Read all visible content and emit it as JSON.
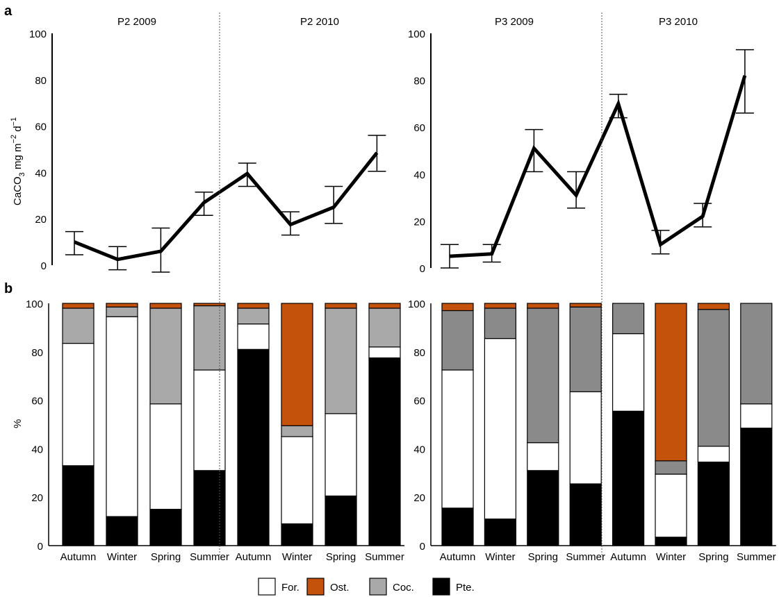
{
  "colors": {
    "for": "#ffffff",
    "ost": "#c5520b",
    "coc_p2": "#a9a9a9",
    "coc_p3": "#8a8a8a",
    "pte": "#000000"
  },
  "panels": {
    "a_label": "a",
    "b_label": "b"
  },
  "chart_data": [
    {
      "type": "line",
      "panel": "a-left",
      "ylabel": "CaCO3 mg m-2 d-1",
      "ylim": [
        0,
        100
      ],
      "yticks": [
        0,
        20,
        40,
        60,
        80,
        100
      ],
      "group_labels": [
        "P2 2009",
        "P2 2010"
      ],
      "points": [
        {
          "x": 0,
          "y": 10,
          "err_low": 4.5,
          "err_high": 14.5
        },
        {
          "x": 1,
          "y": 2.5,
          "err_low": -2,
          "err_high": 8
        },
        {
          "x": 2,
          "y": 6,
          "err_low": -3,
          "err_high": 16
        },
        {
          "x": 3,
          "y": 27,
          "err_low": 21.5,
          "err_high": 31.5
        },
        {
          "x": 4,
          "y": 39.5,
          "err_low": 34,
          "err_high": 44
        },
        {
          "x": 5,
          "y": 17.5,
          "err_low": 13,
          "err_high": 23
        },
        {
          "x": 6,
          "y": 25,
          "err_low": 18,
          "err_high": 34
        },
        {
          "x": 7,
          "y": 48.5,
          "err_low": 40.5,
          "err_high": 56
        }
      ]
    },
    {
      "type": "line",
      "panel": "a-right",
      "ylim": [
        0,
        100
      ],
      "yticks": [
        0,
        20,
        40,
        60,
        80,
        100
      ],
      "group_labels": [
        "P3 2009",
        "P3 2010"
      ],
      "points": [
        {
          "x": 0,
          "y": 5,
          "err_low": 0,
          "err_high": 10
        },
        {
          "x": 1,
          "y": 6,
          "err_low": 2.5,
          "err_high": 10
        },
        {
          "x": 2,
          "y": 51,
          "err_low": 41,
          "err_high": 59
        },
        {
          "x": 3,
          "y": 31,
          "err_low": 25.5,
          "err_high": 41
        },
        {
          "x": 4,
          "y": 70,
          "err_low": 64,
          "err_high": 74
        },
        {
          "x": 5,
          "y": 10,
          "err_low": 6,
          "err_high": 16
        },
        {
          "x": 6,
          "y": 22,
          "err_low": 17.5,
          "err_high": 27.5
        },
        {
          "x": 7,
          "y": 82,
          "err_low": 66,
          "err_high": 93
        }
      ]
    },
    {
      "type": "bar",
      "panel": "b-left",
      "stacked": true,
      "ylabel": "%",
      "ylim": [
        0,
        100
      ],
      "yticks": [
        0,
        20,
        40,
        60,
        80,
        100
      ],
      "categories": [
        "Autumn",
        "Winter",
        "Spring",
        "Summer",
        "Autumn",
        "Winter",
        "Spring",
        "Summer"
      ],
      "series": [
        {
          "name": "Pte.",
          "key": "pte",
          "values": [
            33,
            12,
            15,
            31,
            81,
            9,
            20.5,
            77.5
          ]
        },
        {
          "name": "For.",
          "key": "for",
          "values": [
            50.5,
            82.5,
            43.5,
            41.5,
            10.5,
            36,
            34,
            4.5
          ]
        },
        {
          "name": "Coc.",
          "key": "coc_p2",
          "values": [
            14.5,
            4,
            39.5,
            26.5,
            6.5,
            4.5,
            43.5,
            16
          ]
        },
        {
          "name": "Ost.",
          "key": "ost",
          "values": [
            2,
            1.5,
            2,
            1,
            2,
            50.5,
            2,
            2
          ]
        }
      ]
    },
    {
      "type": "bar",
      "panel": "b-right",
      "stacked": true,
      "ylim": [
        0,
        100
      ],
      "yticks": [
        0,
        20,
        40,
        60,
        80,
        100
      ],
      "categories": [
        "Autumn",
        "Winter",
        "Spring",
        "Summer",
        "Autumn",
        "Winter",
        "Spring",
        "Summer"
      ],
      "series": [
        {
          "name": "Pte.",
          "key": "pte",
          "values": [
            15.5,
            11,
            31,
            25.5,
            55.5,
            3.5,
            34.5,
            48.5
          ]
        },
        {
          "name": "For.",
          "key": "for",
          "values": [
            57,
            74.5,
            11.5,
            38,
            32,
            26,
            6.5,
            10
          ]
        },
        {
          "name": "Coc.",
          "key": "coc_p3",
          "values": [
            24.5,
            12.5,
            55.5,
            35,
            12.5,
            5.5,
            56.5,
            41.5
          ]
        },
        {
          "name": "Ost.",
          "key": "ost",
          "values": [
            3,
            2,
            2,
            1.5,
            0,
            65,
            2.5,
            0
          ]
        }
      ]
    }
  ],
  "legend": [
    {
      "label": "For.",
      "key": "for"
    },
    {
      "label": "Ost.",
      "key": "ost"
    },
    {
      "label": "Coc.",
      "key": "coc_p2"
    },
    {
      "label": "Pte.",
      "key": "pte"
    }
  ]
}
